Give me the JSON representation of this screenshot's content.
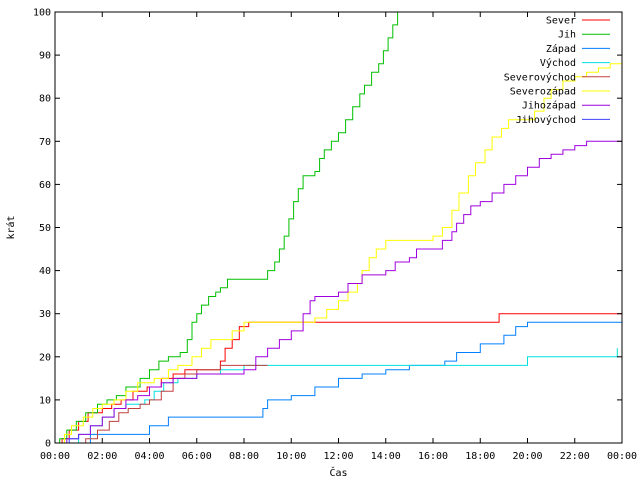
{
  "chart_data": {
    "type": "line",
    "step": true,
    "xlabel": "Čas",
    "ylabel": "krát",
    "xlim": [
      0,
      24
    ],
    "ylim": [
      0,
      100
    ],
    "x_tick_values": [
      0,
      2,
      4,
      6,
      8,
      10,
      12,
      14,
      16,
      18,
      20,
      22,
      24
    ],
    "x_tick_labels": [
      "00:00",
      "02:00",
      "04:00",
      "06:00",
      "08:00",
      "10:00",
      "12:00",
      "14:00",
      "16:00",
      "18:00",
      "20:00",
      "22:00",
      "00:00"
    ],
    "y_ticks": [
      0,
      10,
      20,
      30,
      40,
      50,
      60,
      70,
      80,
      90,
      100
    ],
    "grid": false,
    "legend_position": "top-right",
    "series": [
      {
        "name": "Sever",
        "color": "#ff0000",
        "points": [
          [
            0.2,
            0
          ],
          [
            0.3,
            1
          ],
          [
            0.6,
            3
          ],
          [
            1.0,
            5
          ],
          [
            1.4,
            7
          ],
          [
            2.0,
            8
          ],
          [
            2.4,
            9
          ],
          [
            2.8,
            10
          ],
          [
            3.3,
            12
          ],
          [
            3.9,
            13
          ],
          [
            4.5,
            15
          ],
          [
            5.0,
            16
          ],
          [
            5.5,
            17
          ],
          [
            6.5,
            17
          ],
          [
            7.0,
            19
          ],
          [
            7.2,
            22
          ],
          [
            7.5,
            24
          ],
          [
            7.8,
            27
          ],
          [
            8.2,
            28
          ],
          [
            9.0,
            28
          ],
          [
            11.0,
            28
          ],
          [
            18.5,
            28
          ],
          [
            18.8,
            30
          ],
          [
            24,
            30
          ]
        ]
      },
      {
        "name": "Jih",
        "color": "#00c000",
        "points": [
          [
            0.1,
            0
          ],
          [
            0.2,
            1
          ],
          [
            0.5,
            3
          ],
          [
            0.9,
            5
          ],
          [
            1.3,
            7
          ],
          [
            1.8,
            9
          ],
          [
            2.2,
            10
          ],
          [
            2.6,
            11
          ],
          [
            3.0,
            13
          ],
          [
            3.6,
            15
          ],
          [
            4.0,
            17
          ],
          [
            4.4,
            19
          ],
          [
            4.8,
            20
          ],
          [
            5.3,
            21
          ],
          [
            5.6,
            24
          ],
          [
            5.8,
            28
          ],
          [
            6.0,
            30
          ],
          [
            6.2,
            32
          ],
          [
            6.5,
            34
          ],
          [
            6.8,
            35
          ],
          [
            7.0,
            36
          ],
          [
            7.3,
            38
          ],
          [
            8.0,
            38
          ],
          [
            8.8,
            38
          ],
          [
            9.0,
            40
          ],
          [
            9.3,
            42
          ],
          [
            9.5,
            45
          ],
          [
            9.7,
            48
          ],
          [
            9.9,
            52
          ],
          [
            10.1,
            56
          ],
          [
            10.3,
            59
          ],
          [
            10.5,
            62
          ],
          [
            11.0,
            63
          ],
          [
            11.2,
            66
          ],
          [
            11.4,
            68
          ],
          [
            11.7,
            70
          ],
          [
            12.0,
            72
          ],
          [
            12.3,
            75
          ],
          [
            12.6,
            78
          ],
          [
            12.9,
            81
          ],
          [
            13.1,
            83
          ],
          [
            13.4,
            86
          ],
          [
            13.7,
            88
          ],
          [
            13.9,
            91
          ],
          [
            14.1,
            94
          ],
          [
            14.3,
            97
          ],
          [
            14.5,
            100
          ]
        ]
      },
      {
        "name": "Západ",
        "color": "#0080ff",
        "points": [
          [
            1.2,
            0
          ],
          [
            1.5,
            2
          ],
          [
            3.5,
            2
          ],
          [
            4.0,
            4
          ],
          [
            4.8,
            6
          ],
          [
            8.5,
            6
          ],
          [
            8.8,
            8
          ],
          [
            9.0,
            10
          ],
          [
            10.0,
            11
          ],
          [
            11.0,
            13
          ],
          [
            12.0,
            15
          ],
          [
            13.0,
            16
          ],
          [
            14.0,
            17
          ],
          [
            15.0,
            18
          ],
          [
            16.5,
            19
          ],
          [
            17.0,
            21
          ],
          [
            18.0,
            23
          ],
          [
            19.0,
            25
          ],
          [
            19.5,
            27
          ],
          [
            20.0,
            28
          ],
          [
            24,
            28
          ]
        ]
      },
      {
        "name": "Východ",
        "color": "#00e0e0",
        "points": [
          [
            0.8,
            0
          ],
          [
            1.0,
            2
          ],
          [
            1.5,
            4
          ],
          [
            2.0,
            6
          ],
          [
            2.5,
            8
          ],
          [
            3.0,
            9
          ],
          [
            3.8,
            10
          ],
          [
            4.2,
            12
          ],
          [
            4.6,
            14
          ],
          [
            5.2,
            15
          ],
          [
            6.0,
            16
          ],
          [
            7.0,
            17
          ],
          [
            8.0,
            18
          ],
          [
            18.0,
            18
          ],
          [
            20.0,
            20
          ],
          [
            23.5,
            20
          ],
          [
            23.8,
            22
          ]
        ]
      },
      {
        "name": "Severovýchod",
        "color": "#c04040",
        "points": [
          [
            1.0,
            0
          ],
          [
            1.3,
            1
          ],
          [
            1.8,
            3
          ],
          [
            2.3,
            5
          ],
          [
            2.7,
            7
          ],
          [
            3.1,
            8
          ],
          [
            3.6,
            9
          ],
          [
            4.0,
            10
          ],
          [
            4.5,
            12
          ],
          [
            5.0,
            15
          ],
          [
            5.5,
            16
          ],
          [
            6.0,
            17
          ],
          [
            7.0,
            18
          ],
          [
            8.0,
            18
          ],
          [
            9.0,
            18
          ]
        ]
      },
      {
        "name": "Severozápad",
        "color": "#ffff00",
        "points": [
          [
            0.2,
            0
          ],
          [
            0.4,
            2
          ],
          [
            0.7,
            4
          ],
          [
            1.2,
            6
          ],
          [
            1.6,
            8
          ],
          [
            2.0,
            9
          ],
          [
            2.5,
            10
          ],
          [
            3.0,
            12
          ],
          [
            3.5,
            14
          ],
          [
            4.2,
            15
          ],
          [
            4.8,
            17
          ],
          [
            5.2,
            18
          ],
          [
            5.8,
            20
          ],
          [
            6.2,
            22
          ],
          [
            6.6,
            24
          ],
          [
            7.0,
            24
          ],
          [
            7.5,
            26
          ],
          [
            8.0,
            28
          ],
          [
            9.0,
            28
          ],
          [
            10.0,
            28
          ],
          [
            11.0,
            29
          ],
          [
            11.5,
            31
          ],
          [
            12.0,
            33
          ],
          [
            12.4,
            35
          ],
          [
            12.8,
            37
          ],
          [
            13.0,
            40
          ],
          [
            13.3,
            43
          ],
          [
            13.6,
            45
          ],
          [
            14.0,
            47
          ],
          [
            15.0,
            47
          ],
          [
            16.0,
            48
          ],
          [
            16.4,
            50
          ],
          [
            16.8,
            54
          ],
          [
            17.1,
            58
          ],
          [
            17.5,
            62
          ],
          [
            17.8,
            65
          ],
          [
            18.2,
            68
          ],
          [
            18.5,
            71
          ],
          [
            18.9,
            73
          ],
          [
            19.2,
            75
          ],
          [
            20.0,
            75
          ],
          [
            20.3,
            77
          ],
          [
            20.7,
            80
          ],
          [
            21.0,
            82
          ],
          [
            21.5,
            84
          ],
          [
            22.0,
            85
          ],
          [
            22.5,
            86
          ],
          [
            23.0,
            87
          ],
          [
            23.5,
            88
          ],
          [
            24.0,
            88
          ]
        ]
      },
      {
        "name": "Jihozápad",
        "color": "#a000e0",
        "points": [
          [
            0.3,
            0
          ],
          [
            0.5,
            1
          ],
          [
            1.0,
            2
          ],
          [
            1.5,
            4
          ],
          [
            2.0,
            6
          ],
          [
            2.5,
            8
          ],
          [
            3.0,
            10
          ],
          [
            3.5,
            11
          ],
          [
            4.0,
            13
          ],
          [
            4.5,
            14
          ],
          [
            5.0,
            15
          ],
          [
            6.0,
            16
          ],
          [
            7.0,
            16
          ],
          [
            8.0,
            17
          ],
          [
            8.5,
            20
          ],
          [
            9.0,
            22
          ],
          [
            9.5,
            24
          ],
          [
            10.0,
            26
          ],
          [
            10.5,
            30
          ],
          [
            10.8,
            33
          ],
          [
            11.0,
            34
          ],
          [
            12.0,
            35
          ],
          [
            12.4,
            37
          ],
          [
            13.0,
            39
          ],
          [
            14.0,
            40
          ],
          [
            14.4,
            42
          ],
          [
            15.0,
            43
          ],
          [
            15.3,
            45
          ],
          [
            16.0,
            45
          ],
          [
            16.4,
            47
          ],
          [
            16.8,
            49
          ],
          [
            17.0,
            51
          ],
          [
            17.3,
            53
          ],
          [
            17.6,
            55
          ],
          [
            18.0,
            56
          ],
          [
            18.5,
            58
          ],
          [
            19.0,
            60
          ],
          [
            19.5,
            62
          ],
          [
            20.0,
            64
          ],
          [
            20.5,
            66
          ],
          [
            21.0,
            67
          ],
          [
            21.5,
            68
          ],
          [
            22.0,
            69
          ],
          [
            22.5,
            70
          ],
          [
            23.0,
            70
          ],
          [
            24.0,
            70
          ]
        ]
      },
      {
        "name": "Jihovýchod",
        "color": "#4040ff",
        "points": [
          [
            0.5,
            0
          ],
          [
            0.6,
            1
          ],
          [
            1.0,
            2
          ]
        ]
      }
    ]
  }
}
